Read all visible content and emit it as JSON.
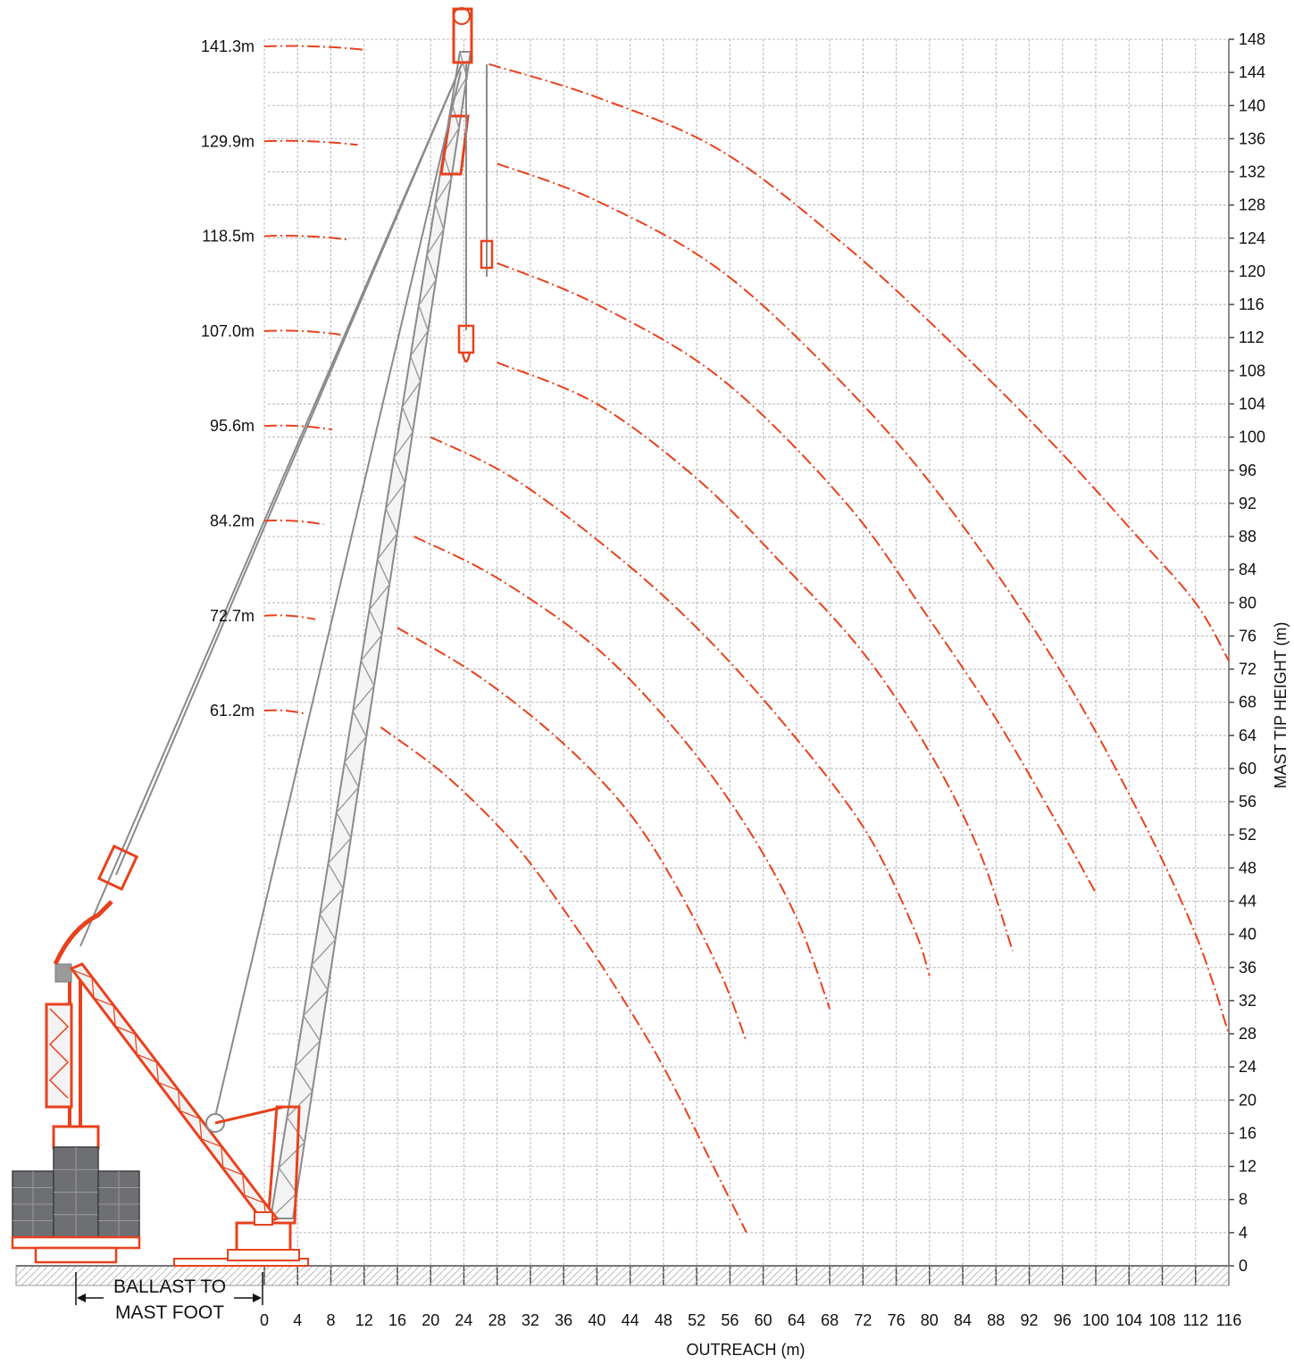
{
  "chart_data": {
    "type": "line",
    "xlabel": "OUTREACH (m)",
    "ylabel": "MAST TIP HEIGHT (m)",
    "xlim": [
      0,
      116
    ],
    "ylim": [
      0,
      148
    ],
    "x_ticks": [
      0,
      4,
      8,
      12,
      16,
      20,
      24,
      28,
      32,
      36,
      40,
      44,
      48,
      52,
      56,
      60,
      64,
      68,
      72,
      76,
      80,
      84,
      88,
      92,
      96,
      100,
      104,
      108,
      112,
      116
    ],
    "y_ticks": [
      0,
      4,
      8,
      12,
      16,
      20,
      24,
      28,
      32,
      36,
      40,
      44,
      48,
      52,
      56,
      60,
      64,
      68,
      72,
      76,
      80,
      84,
      88,
      92,
      96,
      100,
      104,
      108,
      112,
      116,
      120,
      124,
      128,
      132,
      136,
      140,
      144,
      148
    ],
    "grid": true,
    "annotation": "BALLAST TO MAST FOOT",
    "series": [
      {
        "name": "141.3m",
        "x": [
          27,
          40,
          55,
          70,
          82,
          95,
          105,
          112,
          116
        ],
        "y": [
          145,
          141,
          134.5,
          123,
          112,
          99,
          88,
          80,
          73
        ]
      },
      {
        "name": "129.9m",
        "x": [
          28,
          40,
          55,
          70,
          82,
          95,
          105,
          112,
          116
        ],
        "y": [
          133,
          128.5,
          120,
          106,
          92,
          73,
          55,
          40,
          28
        ]
      },
      {
        "name": "118.5m",
        "x": [
          28,
          40,
          55,
          70,
          80,
          88,
          95,
          100
        ],
        "y": [
          121,
          116,
          107,
          92,
          78,
          66,
          54,
          45
        ]
      },
      {
        "name": "107.0m",
        "x": [
          28,
          40,
          52,
          62,
          72,
          80,
          86,
          90
        ],
        "y": [
          109,
          104,
          95,
          85,
          74,
          62,
          50,
          38
        ]
      },
      {
        "name": "95.6m",
        "x": [
          20,
          30,
          42,
          52,
          62,
          72,
          78,
          80
        ],
        "y": [
          100,
          95,
          86,
          77,
          66,
          53,
          41,
          35
        ]
      },
      {
        "name": "84.2m",
        "x": [
          18,
          28,
          40,
          50,
          58,
          64,
          68
        ],
        "y": [
          88,
          83,
          74.5,
          64,
          53,
          42,
          31
        ]
      },
      {
        "name": "72.7m",
        "x": [
          16,
          26,
          36,
          44,
          50,
          55,
          58
        ],
        "y": [
          77,
          71,
          63,
          54.5,
          45,
          35,
          27
        ]
      },
      {
        "name": "61.2m",
        "x": [
          14,
          22,
          30,
          36,
          42,
          48,
          54,
          58
        ],
        "y": [
          65,
          59,
          51,
          43,
          34,
          24,
          12,
          4
        ]
      }
    ]
  }
}
